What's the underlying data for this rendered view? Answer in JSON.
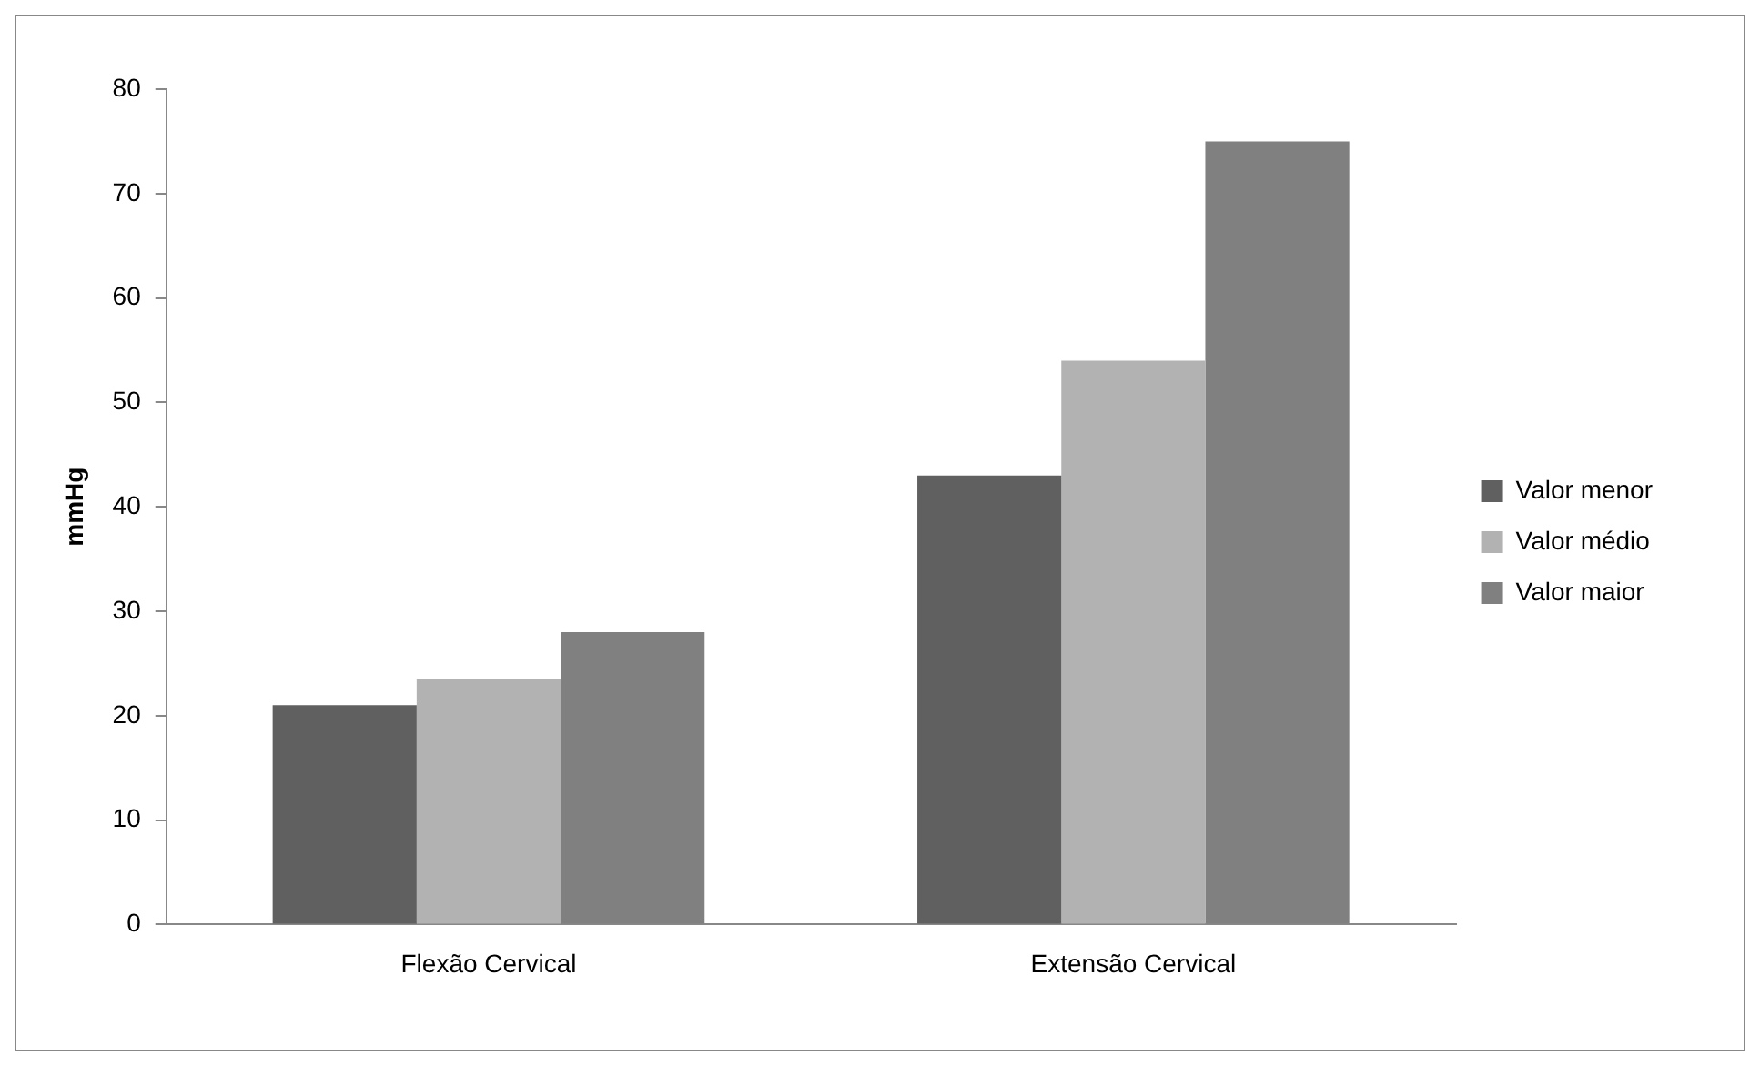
{
  "chart_data": {
    "type": "bar",
    "ylabel": "mmHg",
    "categories": [
      "Flexão Cervical",
      "Extensão Cervical"
    ],
    "series": [
      {
        "name": "Valor menor",
        "color": "#606060",
        "values": [
          21,
          43
        ]
      },
      {
        "name": "Valor médio",
        "color": "#b2b2b2",
        "values": [
          23.5,
          54
        ]
      },
      {
        "name": "Valor maior",
        "color": "#808080",
        "values": [
          28,
          75
        ]
      }
    ],
    "ylim": [
      0,
      80
    ],
    "yticks": [
      0,
      10,
      20,
      30,
      40,
      50,
      60,
      70,
      80
    ],
    "grid": false,
    "legend": "right"
  }
}
